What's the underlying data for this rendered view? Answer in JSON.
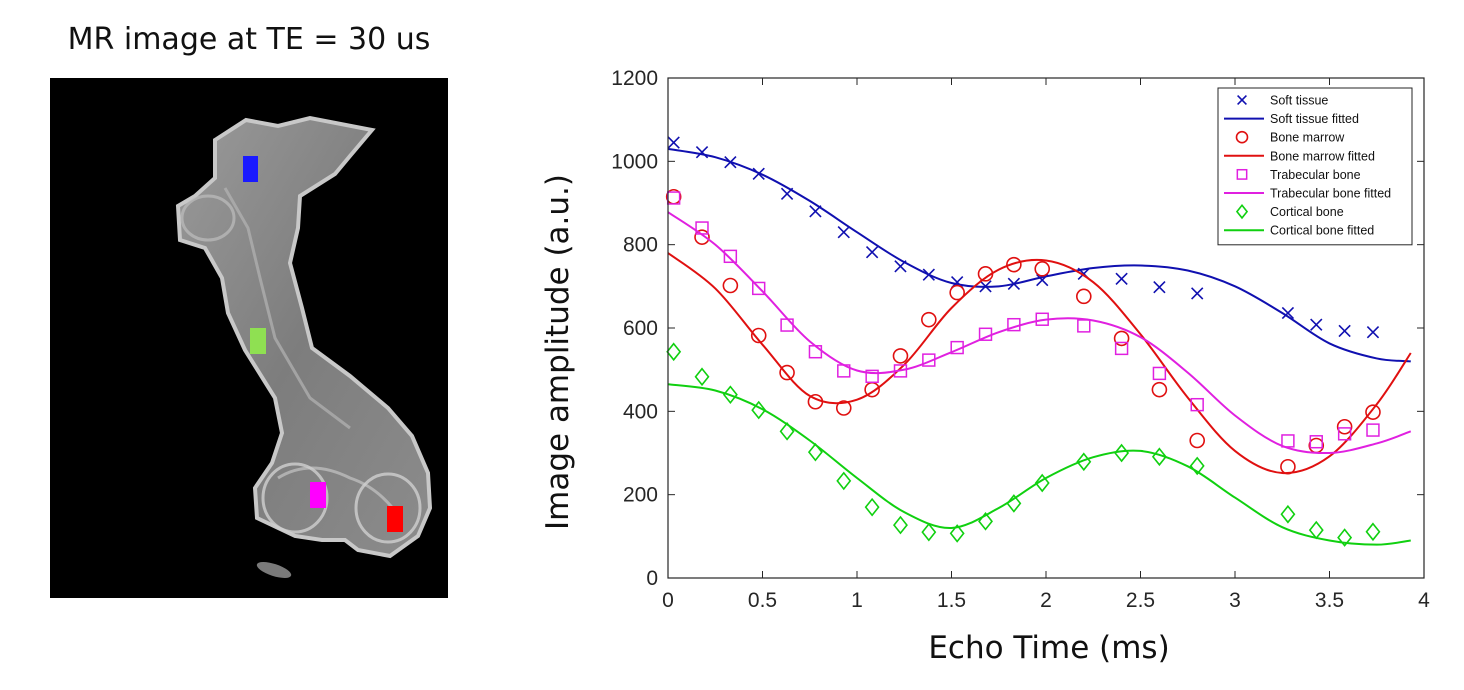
{
  "image_panel": {
    "title": "MR image at TE = 30 us",
    "roi_colors": {
      "soft_tissue": "#1a1aff",
      "cortical_bone": "#8fe052",
      "trabecular_bone": "#ff00ff",
      "bone_marrow": "#ff0000"
    }
  },
  "chart_data": {
    "type": "scatter",
    "title": "",
    "xlabel": "Echo Time (ms)",
    "ylabel": "Image amplitude (a.u.)",
    "xlim": [
      0,
      4
    ],
    "ylim": [
      0,
      1200
    ],
    "xticks": [
      0,
      0.5,
      1,
      1.5,
      2,
      2.5,
      3,
      3.5,
      4
    ],
    "xtick_labels": [
      "0",
      "0.5",
      "1",
      "1.5",
      "2",
      "2.5",
      "3",
      "3.5",
      "4"
    ],
    "yticks": [
      0,
      200,
      400,
      600,
      800,
      1000,
      1200
    ],
    "ytick_labels": [
      "0",
      "200",
      "400",
      "600",
      "800",
      "1000",
      "1200"
    ],
    "grid": false,
    "legend_position": "top-right",
    "series": [
      {
        "name": "Soft tissue",
        "fit_name": "Soft tissue fitted",
        "color": "#1010b0",
        "marker": "x",
        "x": [
          0.03,
          0.18,
          0.33,
          0.48,
          0.63,
          0.78,
          0.93,
          1.08,
          1.23,
          1.38,
          1.53,
          1.68,
          1.83,
          1.98,
          2.2,
          2.4,
          2.6,
          2.8,
          3.28,
          3.43,
          3.58,
          3.73
        ],
        "y": [
          1045,
          1022,
          998,
          970,
          922,
          880,
          830,
          782,
          748,
          728,
          710,
          700,
          706,
          715,
          730,
          718,
          698,
          683,
          636,
          608,
          593,
          590
        ],
        "fit_x": [
          0.0,
          0.25,
          0.5,
          0.75,
          1.0,
          1.25,
          1.5,
          1.75,
          2.0,
          2.25,
          2.5,
          2.75,
          3.0,
          3.25,
          3.5,
          3.75,
          3.93
        ],
        "fit_y": [
          1030,
          1010,
          968,
          905,
          830,
          758,
          708,
          700,
          724,
          744,
          750,
          738,
          700,
          636,
          563,
          527,
          520
        ]
      },
      {
        "name": "Bone marrow",
        "fit_name": "Bone marrow fitted",
        "color": "#e01010",
        "marker": "o",
        "x": [
          0.03,
          0.18,
          0.33,
          0.48,
          0.63,
          0.78,
          0.93,
          1.08,
          1.23,
          1.38,
          1.53,
          1.68,
          1.83,
          1.98,
          2.2,
          2.4,
          2.6,
          2.8,
          3.28,
          3.43,
          3.58,
          3.73
        ],
        "y": [
          915,
          818,
          702,
          582,
          493,
          423,
          408,
          452,
          533,
          620,
          685,
          730,
          752,
          742,
          676,
          575,
          452,
          330,
          267,
          318,
          363,
          398
        ],
        "fit_x": [
          0.0,
          0.25,
          0.5,
          0.75,
          1.0,
          1.25,
          1.5,
          1.75,
          2.0,
          2.25,
          2.5,
          2.75,
          3.0,
          3.25,
          3.5,
          3.75,
          3.93
        ],
        "fit_y": [
          780,
          695,
          560,
          437,
          428,
          512,
          648,
          740,
          762,
          710,
          585,
          433,
          305,
          252,
          292,
          417,
          540
        ]
      },
      {
        "name": "Trabecular bone",
        "fit_name": "Trabecular bone fitted",
        "color": "#e020e0",
        "marker": "s",
        "x": [
          0.03,
          0.18,
          0.33,
          0.48,
          0.63,
          0.78,
          0.93,
          1.08,
          1.23,
          1.38,
          1.53,
          1.68,
          1.83,
          1.98,
          2.2,
          2.4,
          2.6,
          2.8,
          3.28,
          3.43,
          3.58,
          3.73
        ],
        "y": [
          912,
          840,
          772,
          695,
          607,
          543,
          497,
          484,
          497,
          523,
          553,
          585,
          608,
          621,
          605,
          551,
          491,
          416,
          329,
          327,
          346,
          355
        ],
        "fit_x": [
          0.0,
          0.25,
          0.5,
          0.75,
          1.0,
          1.25,
          1.5,
          1.75,
          2.0,
          2.25,
          2.5,
          2.75,
          3.0,
          3.25,
          3.5,
          3.75,
          3.93
        ],
        "fit_y": [
          878,
          800,
          688,
          568,
          498,
          500,
          542,
          590,
          620,
          618,
          578,
          493,
          390,
          317,
          300,
          323,
          352
        ]
      },
      {
        "name": "Cortical bone",
        "fit_name": "Cortical bone fitted",
        "color": "#10d010",
        "marker": "d",
        "x": [
          0.03,
          0.18,
          0.33,
          0.48,
          0.63,
          0.78,
          0.93,
          1.08,
          1.23,
          1.38,
          1.53,
          1.68,
          1.83,
          1.98,
          2.2,
          2.4,
          2.6,
          2.8,
          3.28,
          3.43,
          3.58,
          3.73
        ],
        "y": [
          543,
          483,
          440,
          403,
          352,
          302,
          233,
          170,
          127,
          110,
          107,
          136,
          179,
          228,
          279,
          300,
          291,
          269,
          153,
          115,
          97,
          111
        ],
        "fit_x": [
          0.0,
          0.25,
          0.5,
          0.75,
          1.0,
          1.25,
          1.5,
          1.75,
          2.0,
          2.25,
          2.5,
          2.75,
          3.0,
          3.25,
          3.5,
          3.75,
          3.93
        ],
        "fit_y": [
          465,
          450,
          405,
          330,
          240,
          158,
          120,
          168,
          240,
          290,
          305,
          268,
          193,
          122,
          90,
          80,
          90
        ]
      }
    ]
  }
}
